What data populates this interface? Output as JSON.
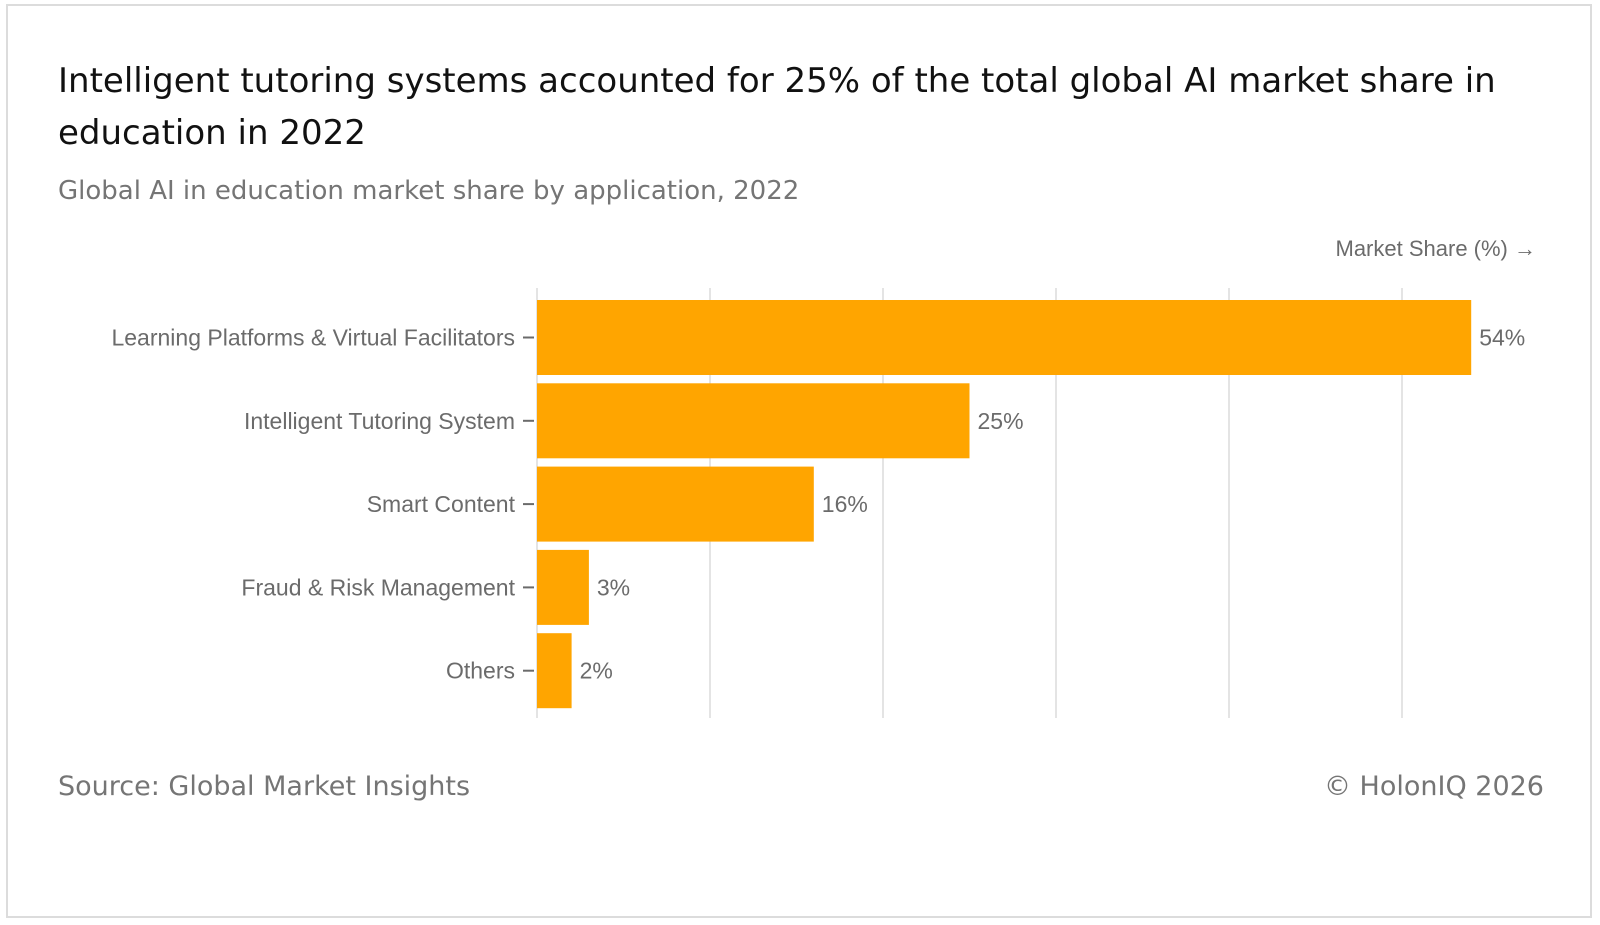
{
  "header": {
    "title": "Intelligent tutoring systems accounted for 25% of the total global AI market share in education in 2022",
    "subtitle": "Global AI in education market share by application, 2022"
  },
  "footer": {
    "source": "Source: Global Market Insights",
    "copyright": "© HolonIQ 2026"
  },
  "colors": {
    "bar": "#FFA500",
    "grid": "#e4e4e4",
    "label": "#6b6b6b"
  },
  "chart_data": {
    "type": "bar",
    "orientation": "horizontal",
    "title": "Intelligent tutoring systems accounted for 25% of the total global AI market share in education in 2022",
    "subtitle": "Global AI in education market share by application, 2022",
    "xlabel": "Market Share (%) →",
    "ylabel": "",
    "categories": [
      "Learning Platforms & Virtual Facilitators",
      "Intelligent Tutoring System",
      "Smart Content",
      "Fraud & Risk Management",
      "Others"
    ],
    "values": [
      54,
      25,
      16,
      3,
      2
    ],
    "value_labels": [
      "54%",
      "25%",
      "16%",
      "3%",
      "2%"
    ],
    "xlim": [
      0,
      60
    ],
    "grid": true,
    "gridline_values": [
      0,
      10,
      20,
      30,
      40,
      50
    ]
  }
}
